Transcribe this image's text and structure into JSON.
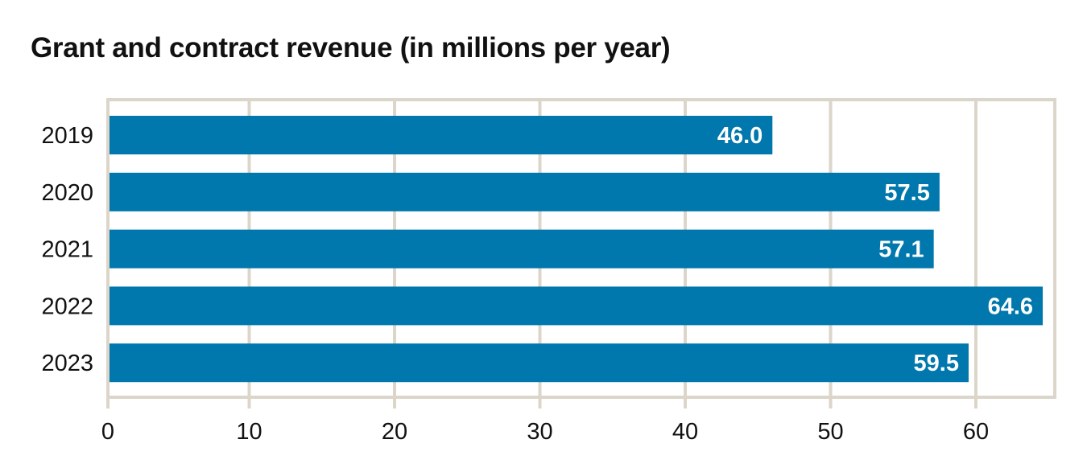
{
  "chart_data": {
    "type": "bar",
    "orientation": "horizontal",
    "title": "Grant and contract revenue (in millions per year)",
    "xlabel": "",
    "ylabel": "",
    "categories": [
      "2019",
      "2020",
      "2021",
      "2022",
      "2023"
    ],
    "values": [
      46.0,
      57.5,
      57.1,
      64.6,
      59.5
    ],
    "value_labels": [
      "46.0",
      "57.5",
      "57.1",
      "64.6",
      "59.5"
    ],
    "xlim": [
      0,
      65
    ],
    "xticks": [
      0,
      10,
      20,
      30,
      40,
      50,
      60
    ],
    "xtick_labels": [
      "0",
      "10",
      "20",
      "30",
      "40",
      "50",
      "60"
    ],
    "grid": true,
    "legend": "none",
    "colors": {
      "bar": "#0077ad",
      "grid": "#dcd6ca",
      "value_text": "#ffffff"
    }
  }
}
